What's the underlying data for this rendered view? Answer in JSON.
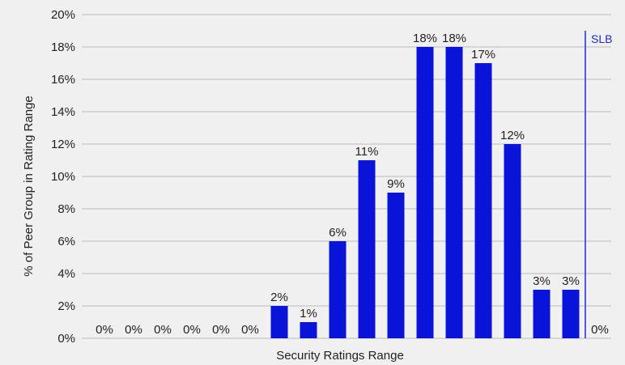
{
  "chart_data": {
    "type": "bar",
    "categories": [
      "",
      "",
      "",
      "",
      "",
      "",
      "",
      "",
      "",
      "",
      "",
      "",
      "",
      "",
      "",
      "",
      "",
      ""
    ],
    "values": [
      0,
      0,
      0,
      0,
      0,
      0,
      2,
      1,
      6,
      11,
      9,
      18,
      18,
      17,
      12,
      3,
      3,
      0
    ],
    "data_labels": [
      "0%",
      "0%",
      "0%",
      "0%",
      "0%",
      "0%",
      "2%",
      "1%",
      "6%",
      "11%",
      "9%",
      "18%",
      "18%",
      "17%",
      "12%",
      "3%",
      "3%",
      "0%"
    ],
    "xlabel": "Security Ratings Range",
    "ylabel": "% of Peer Group in Rating Range",
    "ylim": [
      0,
      20
    ],
    "yticks": [
      0,
      2,
      4,
      6,
      8,
      10,
      12,
      14,
      16,
      18,
      20
    ],
    "ytick_labels": [
      "0%",
      "2%",
      "4%",
      "6%",
      "8%",
      "10%",
      "12%",
      "14%",
      "16%",
      "18%",
      "20%"
    ],
    "grid": true,
    "legend": "none",
    "marker": {
      "label": "SLB",
      "between_categories": [
        16,
        17
      ]
    },
    "colors": {
      "bar": "#0a14d9",
      "marker": "#1a2bd6",
      "grid": "#bdbdbd",
      "text": "#222222",
      "background": "#f0f0f0"
    }
  }
}
